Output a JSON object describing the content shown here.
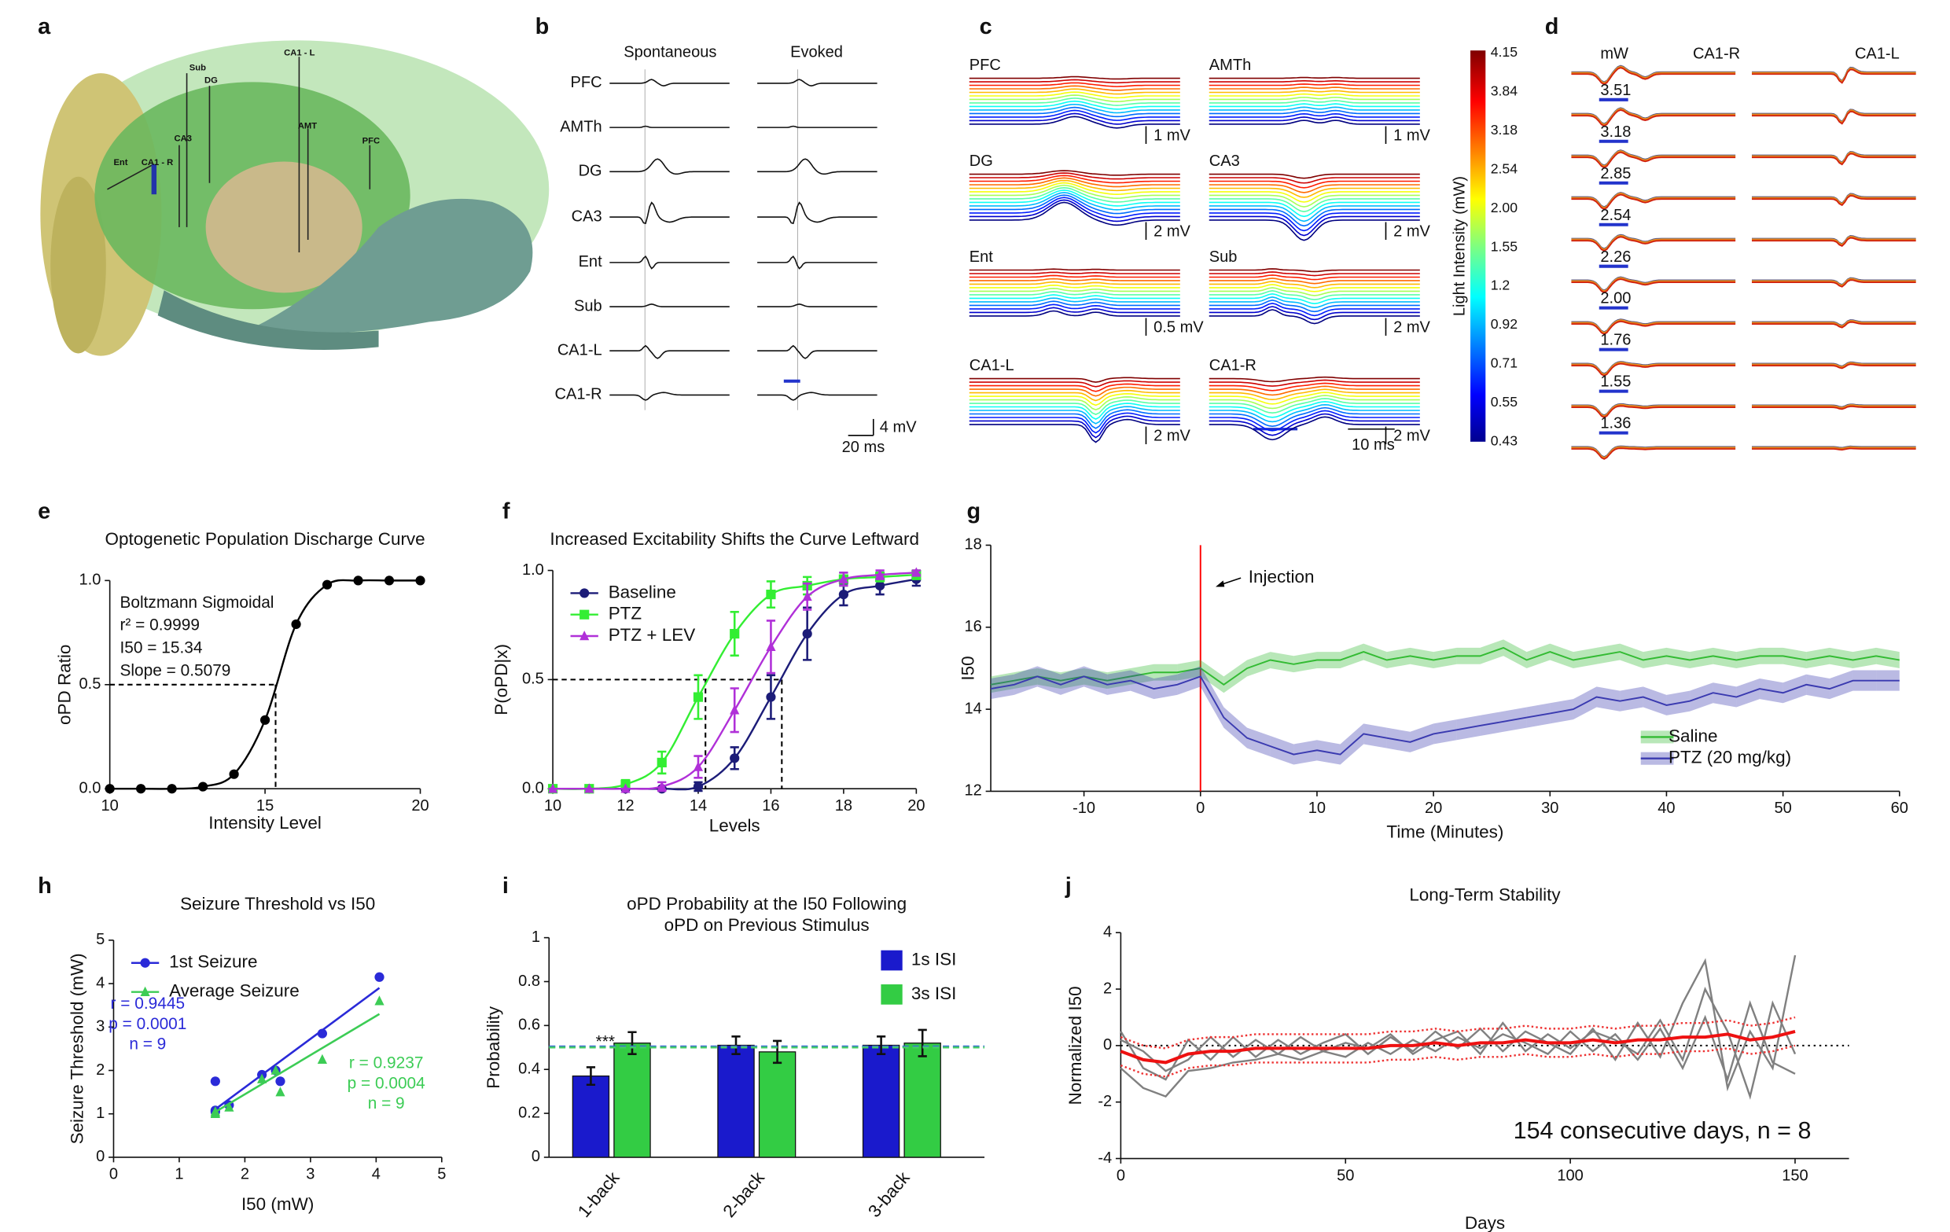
{
  "figure": {
    "panel_letters": [
      "a",
      "b",
      "c",
      "d",
      "e",
      "f",
      "g",
      "h",
      "i",
      "j"
    ],
    "panel_a": {
      "labels": [
        "Sub",
        "DG",
        "CA1 - L",
        "CA3",
        "AMT",
        "PFC",
        "Ent",
        "CA1 - R"
      ]
    },
    "panel_b": {
      "columns": [
        "Spontaneous",
        "Evoked"
      ],
      "rows": [
        "PFC",
        "AMTh",
        "DG",
        "CA3",
        "Ent",
        "Sub",
        "CA1-L",
        "CA1-R"
      ],
      "scale_v": "4 mV",
      "scale_t": "20 ms"
    },
    "panel_c": {
      "rows": [
        "PFC",
        "AMTh",
        "DG",
        "CA3",
        "Ent",
        "Sub",
        "CA1-L",
        "CA1-R"
      ],
      "scales": [
        "1 mV",
        "1 mV",
        "2 mV",
        "2 mV",
        "0.5 mV",
        "2 mV",
        "2 mV",
        "2 mV"
      ],
      "scale_t": "10 ms",
      "colorbar_title": "Light Intensity (mW)",
      "colorbar_ticks": [
        "4.15",
        "3.84",
        "3.18",
        "2.54",
        "2.00",
        "1.55",
        "1.2",
        "0.92",
        "0.71",
        "0.55",
        "0.43"
      ]
    },
    "panel_d": {
      "unit": "mW",
      "columns": [
        "CA1-R",
        "CA1-L"
      ],
      "intensities": [
        "3.51",
        "3.18",
        "2.85",
        "2.54",
        "2.26",
        "2.00",
        "1.76",
        "1.55",
        "1.36"
      ]
    }
  },
  "chart_data": [
    {
      "type": "line",
      "title": "Optogenetic Population Discharge Curve",
      "x_label": "Intensity Level",
      "y_label": "oPD Ratio",
      "x": [
        10,
        11,
        12,
        13,
        14,
        15,
        16,
        17,
        18,
        19,
        20
      ],
      "values": [
        0,
        0,
        0,
        0.01,
        0.07,
        0.33,
        0.79,
        0.98,
        1,
        1,
        1
      ],
      "color": "#000000",
      "marker": "circle",
      "smooth": true,
      "xlim": [
        10,
        20
      ],
      "xticks": [
        10,
        15,
        20
      ],
      "ylim": [
        0,
        1
      ],
      "yticks": [
        {
          "value": 0,
          "label": "0.0"
        },
        0.5,
        {
          "value": 1,
          "label": "1.0"
        }
      ],
      "reference_y": [
        0.5
      ],
      "reference_x": [
        15.34
      ],
      "annotations": [
        "Boltzmann Sigmoidal",
        "r² = 0.9999",
        "I50 = 15.34",
        "Slope = 0.5079"
      ]
    },
    {
      "type": "line",
      "title": "Increased Excitability Shifts the Curve Leftward",
      "x_label": "Levels",
      "y_label": "P(oPD|x)",
      "x": [
        10,
        11,
        12,
        13,
        14,
        15,
        16,
        17,
        18,
        19,
        20
      ],
      "smooth": true,
      "legend": "upper left",
      "series": [
        {
          "name": "Baseline",
          "color": "#1c1c78",
          "marker": "circle",
          "values": [
            0,
            0,
            0,
            0,
            0.01,
            0.14,
            0.42,
            0.71,
            0.89,
            0.93,
            0.96
          ],
          "errors": [
            0,
            0,
            0,
            0,
            0.02,
            0.05,
            0.1,
            0.12,
            0.05,
            0.04,
            0.03
          ]
        },
        {
          "name": "PTZ",
          "color": "#33ee33",
          "marker": "square",
          "values": [
            0,
            0,
            0.02,
            0.12,
            0.42,
            0.71,
            0.89,
            0.93,
            0.96,
            0.97,
            0.98
          ],
          "errors": [
            0,
            0,
            0.02,
            0.05,
            0.1,
            0.1,
            0.06,
            0.04,
            0.03,
            0.02,
            0.02
          ]
        },
        {
          "name": "PTZ + LEV",
          "color": "#b030d8",
          "marker": "triangle",
          "values": [
            0,
            0,
            0,
            0.01,
            0.1,
            0.36,
            0.65,
            0.88,
            0.96,
            0.98,
            0.99
          ],
          "errors": [
            0,
            0,
            0,
            0.02,
            0.05,
            0.1,
            0.12,
            0.06,
            0.03,
            0.02,
            0.01
          ]
        }
      ],
      "xlim": [
        10,
        20
      ],
      "xticks": [
        10,
        12,
        14,
        16,
        18,
        20
      ],
      "ylim": [
        0,
        1
      ],
      "yticks": [
        {
          "value": 0,
          "label": "0.0"
        },
        0.5,
        {
          "value": 1,
          "label": "1.0"
        }
      ],
      "reference_y": [
        0.5
      ],
      "reference_x": [
        14.2,
        16.3
      ]
    },
    {
      "type": "line",
      "x_label": "Time (Minutes)",
      "y_label": "I50",
      "legend": "lower right",
      "x": [
        -18,
        -16,
        -14,
        -12,
        -10,
        -8,
        -6,
        -4,
        -2,
        0,
        2,
        4,
        6,
        8,
        10,
        12,
        14,
        16,
        18,
        20,
        22,
        24,
        26,
        28,
        30,
        32,
        34,
        36,
        38,
        40,
        42,
        44,
        46,
        48,
        50,
        52,
        54,
        56,
        58,
        60
      ],
      "series": [
        {
          "name": "Saline",
          "color": "#33bb33",
          "band": true,
          "values": [
            14.6,
            14.7,
            14.8,
            14.7,
            14.8,
            14.7,
            14.8,
            14.9,
            14.9,
            15.0,
            14.6,
            15.0,
            15.2,
            15.1,
            15.2,
            15.2,
            15.4,
            15.2,
            15.3,
            15.2,
            15.3,
            15.3,
            15.5,
            15.2,
            15.4,
            15.2,
            15.3,
            15.4,
            15.2,
            15.3,
            15.2,
            15.3,
            15.2,
            15.3,
            15.3,
            15.2,
            15.3,
            15.2,
            15.3,
            15.2
          ],
          "errors": [
            0.2,
            0.2,
            0.2,
            0.2,
            0.2,
            0.2,
            0.2,
            0.2,
            0.2,
            0.2,
            0.2,
            0.2,
            0.2,
            0.2,
            0.2,
            0.2,
            0.2,
            0.2,
            0.2,
            0.2,
            0.2,
            0.2,
            0.2,
            0.2,
            0.2,
            0.2,
            0.2,
            0.2,
            0.2,
            0.2,
            0.2,
            0.2,
            0.2,
            0.2,
            0.2,
            0.2,
            0.2,
            0.2,
            0.2,
            0.2
          ]
        },
        {
          "name": "PTZ (20 mg/kg)",
          "color": "#3a3ab0",
          "band": true,
          "values": [
            14.5,
            14.6,
            14.8,
            14.6,
            14.8,
            14.6,
            14.7,
            14.5,
            14.6,
            14.8,
            13.8,
            13.3,
            13.1,
            12.9,
            13.0,
            12.9,
            13.4,
            13.3,
            13.2,
            13.4,
            13.5,
            13.6,
            13.7,
            13.8,
            13.9,
            14.0,
            14.3,
            14.2,
            14.3,
            14.1,
            14.2,
            14.4,
            14.3,
            14.5,
            14.4,
            14.6,
            14.5,
            14.7,
            14.7,
            14.7
          ],
          "errors": [
            0.25,
            0.25,
            0.25,
            0.25,
            0.25,
            0.25,
            0.25,
            0.25,
            0.25,
            0.25,
            0.25,
            0.25,
            0.25,
            0.25,
            0.25,
            0.25,
            0.25,
            0.25,
            0.25,
            0.25,
            0.25,
            0.25,
            0.25,
            0.25,
            0.25,
            0.25,
            0.25,
            0.25,
            0.25,
            0.25,
            0.25,
            0.25,
            0.25,
            0.25,
            0.25,
            0.25,
            0.25,
            0.25,
            0.25,
            0.25
          ]
        }
      ],
      "xlim": [
        -18,
        60
      ],
      "xticks": [
        -10,
        0,
        10,
        20,
        30,
        40,
        50,
        60
      ],
      "ylim": [
        12,
        18
      ],
      "yticks": [
        12,
        14,
        16,
        18
      ],
      "vline": {
        "x": 0,
        "color": "#ff0000",
        "label": "Injection"
      }
    },
    {
      "type": "scatter",
      "title": "Seizure Threshold vs I50",
      "x_label": "I50 (mW)",
      "y_label": "Seizure Threshold (mW)",
      "legend": "upper left",
      "series": [
        {
          "name": "1st Seizure",
          "color": "#2a2ad8",
          "marker": "circle",
          "x": [
            1.55,
            1.55,
            1.55,
            1.76,
            2.26,
            2.47,
            2.54,
            3.18,
            4.05
          ],
          "values": [
            1.75,
            1.08,
            1.05,
            1.2,
            1.9,
            2.0,
            1.75,
            2.85,
            4.15
          ],
          "fit": {
            "x": [
              1.5,
              4.05
            ],
            "values": [
              1.05,
              3.9
            ]
          },
          "stats": [
            "r = 0.9445",
            "p = 0.0001",
            "n = 9"
          ]
        },
        {
          "name": "Average Seizure",
          "color": "#3ccc55",
          "marker": "triangle",
          "x": [
            1.55,
            1.55,
            1.55,
            1.76,
            2.26,
            2.47,
            2.54,
            3.18,
            4.05
          ],
          "values": [
            1.05,
            1.0,
            1.02,
            1.15,
            1.8,
            2.0,
            1.5,
            2.25,
            3.6
          ],
          "fit": {
            "x": [
              1.5,
              4.05
            ],
            "values": [
              1.0,
              3.3
            ]
          },
          "stats": [
            "r = 0.9237",
            "p = 0.0004",
            "n = 9"
          ]
        }
      ],
      "xlim": [
        0,
        5
      ],
      "xticks": [
        0,
        1,
        2,
        3,
        4,
        5
      ],
      "ylim": [
        0,
        5
      ],
      "yticks": [
        0,
        1,
        2,
        3,
        4,
        5
      ]
    },
    {
      "type": "bar",
      "title": [
        "oPD Probability at the I50 Following",
        "oPD on Previous Stimulus"
      ],
      "y_label": "Probability",
      "legend": "upper right",
      "categories": [
        "1-back",
        "2-back",
        "3-back"
      ],
      "series": [
        {
          "name": "1s ISI",
          "color": "#1a1acc",
          "values": [
            0.37,
            0.51,
            0.51
          ],
          "errors": [
            0.04,
            0.04,
            0.04
          ]
        },
        {
          "name": "3s ISI",
          "color": "#33cc44",
          "values": [
            0.52,
            0.48,
            0.52
          ],
          "errors": [
            0.05,
            0.05,
            0.06
          ]
        }
      ],
      "ylim": [
        0,
        1
      ],
      "yticks": [
        0,
        0.2,
        0.4,
        0.6,
        0.8,
        1
      ],
      "reference_lines": [
        {
          "value": 0.505,
          "color": "#3a70d0"
        },
        {
          "value": 0.5,
          "color": "#44cc66"
        }
      ],
      "annotations": [
        "***"
      ]
    },
    {
      "type": "line",
      "title": "Long-Term Stability",
      "x_label": "Days",
      "y_label": "Normalized I50",
      "x": [
        0,
        5,
        10,
        15,
        20,
        25,
        30,
        35,
        40,
        45,
        50,
        55,
        60,
        65,
        70,
        75,
        80,
        85,
        90,
        95,
        100,
        105,
        110,
        115,
        120,
        125,
        130,
        135,
        140,
        145,
        150
      ],
      "series": [
        {
          "color": "#808080",
          "values": [
            0.5,
            -0.8,
            -1.2,
            0.2,
            -0.5,
            0.3,
            -0.4,
            0.2,
            -0.3,
            0.1,
            0.4,
            -0.3,
            0.3,
            -0.2,
            0.5,
            -0.1,
            0.6,
            -0.2,
            0.5,
            0.1,
            -0.3,
            0.6,
            -0.5,
            0.8,
            -0.4,
            1.5,
            3.0,
            -1.5,
            0.5,
            -0.8,
            3.2
          ]
        },
        {
          "color": "#808080",
          "values": [
            -0.8,
            -1.5,
            -1.8,
            -0.9,
            -0.8,
            -0.6,
            -0.5,
            -0.3,
            -0.5,
            -0.2,
            -0.4,
            0.1,
            -0.3,
            0.2,
            -0.2,
            0.3,
            -0.1,
            0.4,
            0.1,
            -0.3,
            0.5,
            -0.2,
            0.4,
            -0.5,
            0.6,
            -0.8,
            1.0,
            -1.2,
            1.5,
            -0.6,
            -1.0
          ]
        },
        {
          "color": "#808080",
          "values": [
            0.2,
            -0.2,
            -0.9,
            -0.5,
            0.3,
            -0.4,
            0.2,
            -0.3,
            0.3,
            -0.2,
            0.1,
            -0.1,
            0.4,
            -0.3,
            0.2,
            0.5,
            -0.3,
            0.8,
            -0.2,
            0.4,
            -0.1,
            0.5,
            0.2,
            -0.3,
            0.9,
            -0.5,
            2.0,
            0.5,
            -1.8,
            1.5,
            -0.3
          ]
        },
        {
          "color": "#ee3333",
          "dash": "dotted",
          "values": [
            0.3,
            0,
            -0.1,
            0.2,
            0.3,
            0.3,
            0.4,
            0.4,
            0.4,
            0.4,
            0.4,
            0.4,
            0.5,
            0.5,
            0.6,
            0.5,
            0.6,
            0.6,
            0.7,
            0.6,
            0.6,
            0.7,
            0.6,
            0.7,
            0.7,
            0.8,
            0.8,
            0.9,
            0.7,
            0.8,
            1.0
          ]
        },
        {
          "color": "#ee3333",
          "dash": "dotted",
          "values": [
            -0.7,
            -1.0,
            -1.1,
            -0.8,
            -0.7,
            -0.7,
            -0.6,
            -0.6,
            -0.6,
            -0.6,
            -0.6,
            -0.6,
            -0.5,
            -0.5,
            -0.4,
            -0.5,
            -0.4,
            -0.4,
            -0.3,
            -0.4,
            -0.4,
            -0.3,
            -0.4,
            -0.3,
            -0.3,
            -0.2,
            -0.2,
            -0.1,
            -0.3,
            -0.2,
            0.0
          ]
        },
        {
          "color": "#ee1111",
          "width": 2.5,
          "values": [
            -0.2,
            -0.5,
            -0.6,
            -0.3,
            -0.2,
            -0.2,
            -0.1,
            -0.1,
            -0.1,
            -0.1,
            -0.1,
            -0.1,
            0,
            0,
            0.1,
            0,
            0.1,
            0.1,
            0.2,
            0.1,
            0.1,
            0.2,
            0.1,
            0.2,
            0.2,
            0.3,
            0.3,
            0.4,
            0.2,
            0.3,
            0.5
          ]
        }
      ],
      "xlim": [
        0,
        162
      ],
      "xticks": [
        0,
        50,
        100,
        150
      ],
      "ylim": [
        -4,
        4
      ],
      "yticks": [
        -4,
        -2,
        0,
        2,
        4
      ],
      "reference_y": [
        0
      ],
      "annotations": [
        "154 consecutive days, n = 8"
      ]
    }
  ]
}
